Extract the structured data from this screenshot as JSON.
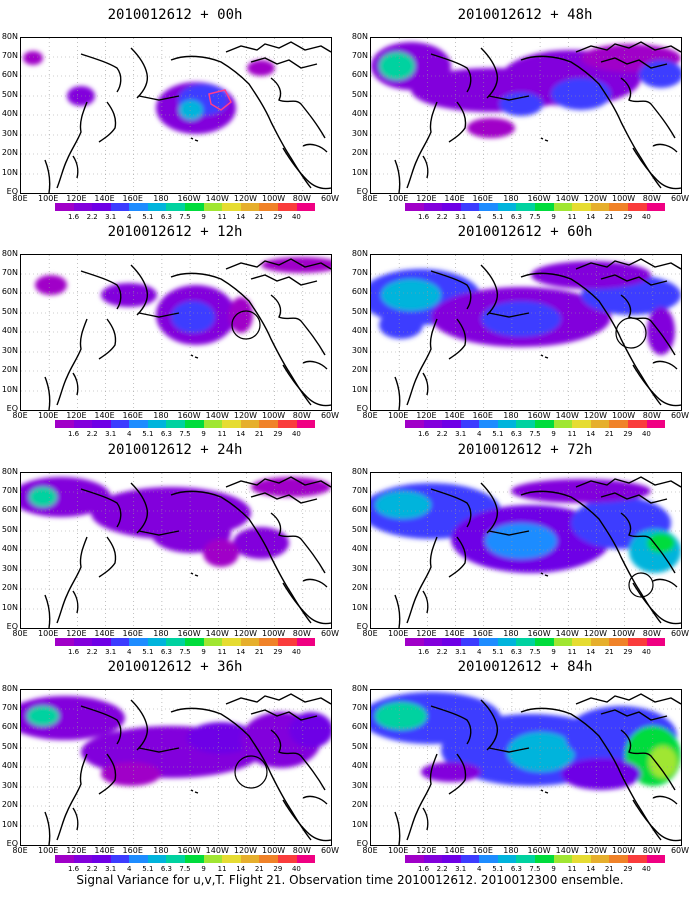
{
  "panels": [
    {
      "title": "2010012612 + 00h"
    },
    {
      "title": "2010012612 + 48h"
    },
    {
      "title": "2010012612 + 12h"
    },
    {
      "title": "2010012612 + 60h"
    },
    {
      "title": "2010012612 + 24h"
    },
    {
      "title": "2010012612 + 72h"
    },
    {
      "title": "2010012612 + 36h"
    },
    {
      "title": "2010012612 + 84h"
    }
  ],
  "lat_labels": [
    "80N",
    "70N",
    "60N",
    "50N",
    "40N",
    "30N",
    "20N",
    "10N",
    "EQ"
  ],
  "lon_labels": [
    "80E",
    "100E",
    "120E",
    "140E",
    "160E",
    "180",
    "160W",
    "140W",
    "120W",
    "100W",
    "80W",
    "60W"
  ],
  "colorbar": {
    "labels": [
      "1.6",
      "2.2",
      "3.1",
      "4",
      "5.1",
      "6.3",
      "7.5",
      "9",
      "11",
      "14",
      "21",
      "29",
      "40"
    ],
    "colors": [
      "#a000c8",
      "#8200dc",
      "#6e00e6",
      "#3c3cff",
      "#1e8cff",
      "#00b4dc",
      "#00d2a0",
      "#00dc3c",
      "#a0e632",
      "#e6dc32",
      "#e6af2d",
      "#f08228",
      "#fa3c3c",
      "#f00082"
    ]
  },
  "colors": {
    "land_outline": "#000000",
    "grid": "#999999",
    "target_box": "#ff3c8c",
    "observation_circle": "#000000"
  },
  "caption": "Signal Variance for u,v,T. Flight 21. Observation time 2010012612. 2010012300 ensemble."
}
